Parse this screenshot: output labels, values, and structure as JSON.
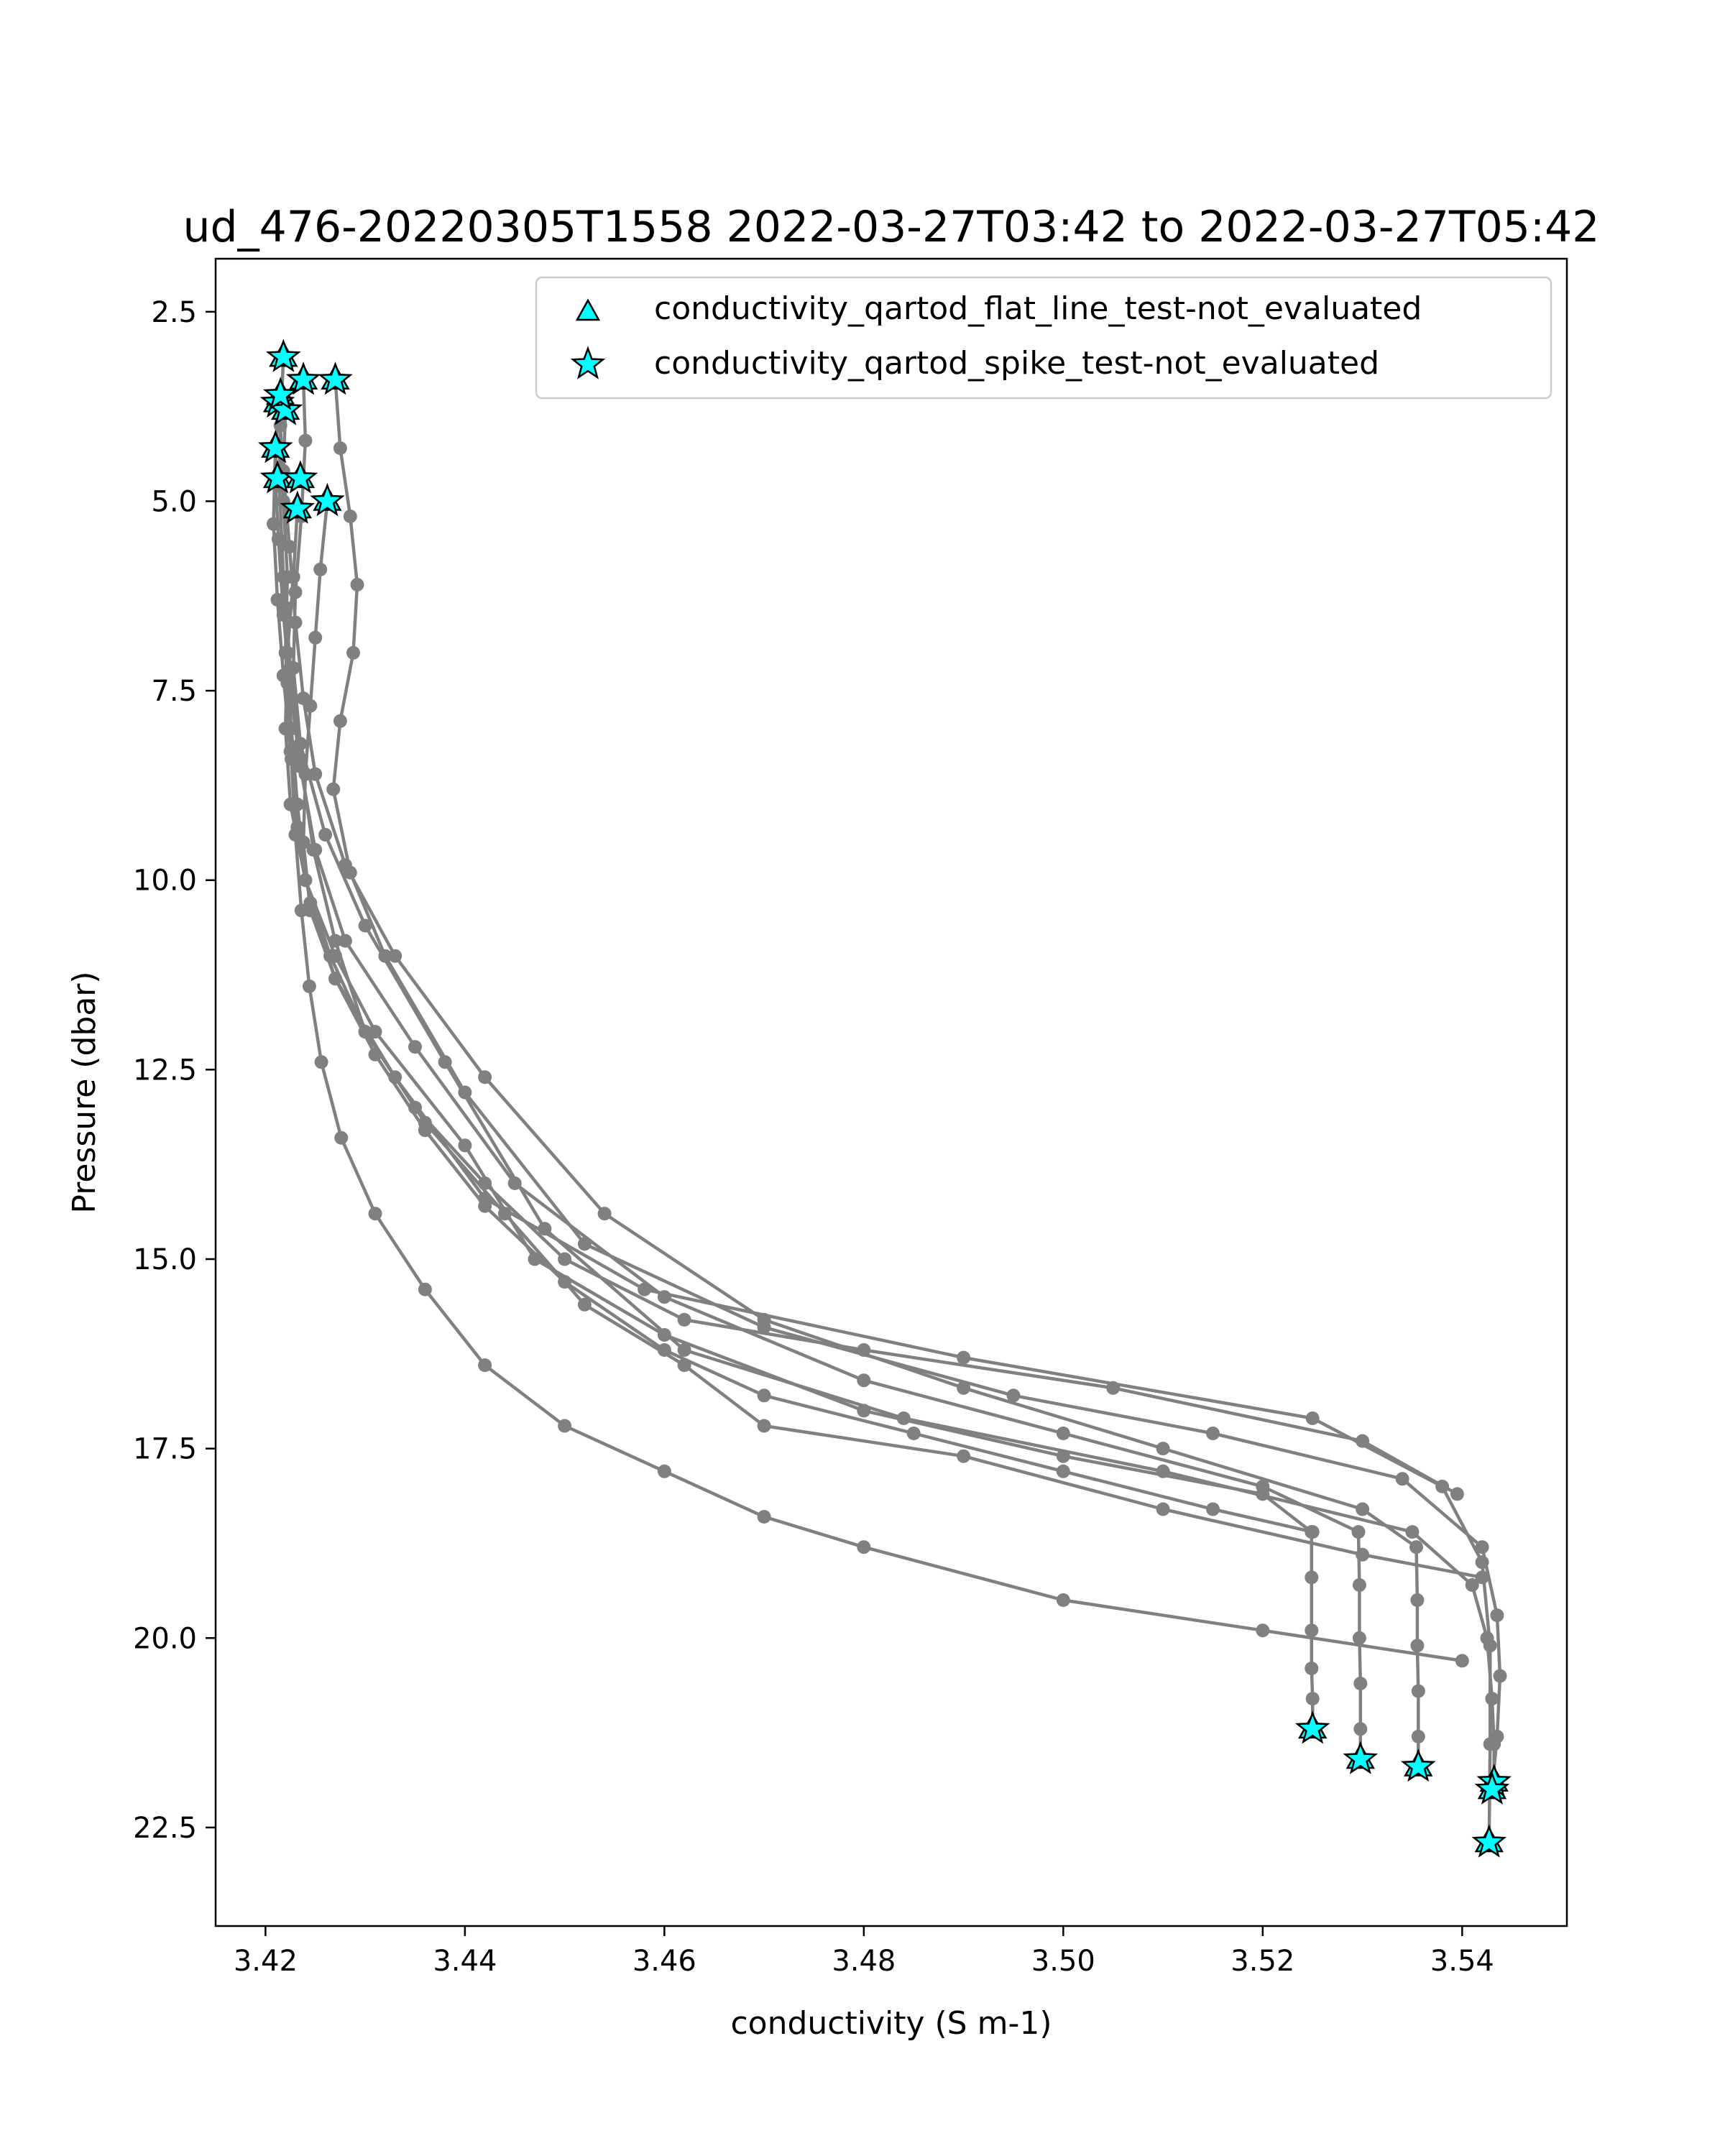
{
  "chart_data": {
    "type": "line",
    "title": "ud_476-20220305T1558 2022-03-27T03:42 to 2022-03-27T05:42",
    "xlabel": "conductivity (S m-1)",
    "ylabel": "Pressure (dbar)",
    "xlim": [
      3.415,
      3.5505
    ],
    "ylim": [
      23.8,
      1.8
    ],
    "y_inverted": true,
    "grid": false,
    "xticks": [
      "3.42",
      "3.44",
      "3.46",
      "3.48",
      "3.50",
      "3.52",
      "3.54"
    ],
    "yticks": [
      "2.5",
      "5.0",
      "7.5",
      "10.0",
      "12.5",
      "15.0",
      "17.5",
      "20.0",
      "22.5"
    ],
    "line_color": "#808080",
    "marker_color": "#00ffff",
    "legend": {
      "position": "top-right",
      "entries": [
        {
          "label": "conductivity_qartod_flat_line_test-not_evaluated",
          "marker": "triangle"
        },
        {
          "label": "conductivity_qartod_spike_test-not_evaluated",
          "marker": "star"
        }
      ]
    },
    "series": [
      {
        "x": [
          3.4218,
          3.4215,
          3.4218,
          3.4222,
          3.422,
          3.4226,
          3.4232,
          3.424,
          3.427,
          3.431,
          3.44,
          3.447,
          3.46,
          3.48,
          3.5,
          3.52,
          3.5249,
          3.5249,
          3.5249,
          3.5249,
          3.525,
          3.525
        ],
        "y": [
          3.1,
          4.0,
          5.0,
          6.0,
          7.0,
          8.0,
          9.0,
          10.0,
          11.0,
          12.0,
          13.5,
          15.0,
          16.0,
          17.0,
          17.6,
          18.1,
          18.6,
          19.2,
          19.9,
          20.4,
          20.8,
          21.2
        ]
      },
      {
        "x": [
          3.4212,
          3.421,
          3.4213,
          3.4218,
          3.4225,
          3.4235,
          3.425,
          3.428,
          3.435,
          3.445,
          3.46,
          3.48,
          3.5,
          3.52,
          3.5296,
          3.5297,
          3.5297,
          3.5298,
          3.5298,
          3.5298
        ],
        "y": [
          3.7,
          4.7,
          5.5,
          6.5,
          7.5,
          8.5,
          9.6,
          10.8,
          12.2,
          14.0,
          15.5,
          16.6,
          17.3,
          18.0,
          18.6,
          19.3,
          20.0,
          20.6,
          21.2,
          21.6
        ]
      },
      {
        "x": [
          3.422,
          3.4218,
          3.4224,
          3.423,
          3.4238,
          3.425,
          3.428,
          3.433,
          3.442,
          3.454,
          3.47,
          3.49,
          3.51,
          3.53,
          3.5354,
          3.5355,
          3.5355,
          3.5356,
          3.5356,
          3.5356
        ],
        "y": [
          3.8,
          4.6,
          5.6,
          6.6,
          7.6,
          8.6,
          9.8,
          11.0,
          12.6,
          14.4,
          15.8,
          16.7,
          17.5,
          18.3,
          18.8,
          19.5,
          20.1,
          20.7,
          21.3,
          21.7
        ]
      },
      {
        "x": [
          3.4238,
          3.424,
          3.4236,
          3.423,
          3.4228,
          3.4235,
          3.426,
          3.43,
          3.438,
          3.448,
          3.462,
          3.484,
          3.51,
          3.535,
          3.541,
          3.5425,
          3.543,
          3.5432,
          3.5432
        ],
        "y": [
          3.4,
          4.2,
          5.2,
          6.2,
          7.2,
          8.2,
          9.4,
          10.6,
          12.4,
          14.6,
          16.2,
          17.1,
          17.8,
          18.6,
          19.3,
          20.0,
          20.8,
          21.4,
          21.9
        ]
      },
      {
        "x": [
          3.427,
          3.4275,
          3.4285,
          3.4292,
          3.4288,
          3.4275,
          3.4268,
          3.4285,
          3.432,
          3.44,
          3.452,
          3.47,
          3.495,
          3.515,
          3.534,
          3.542,
          3.5435,
          3.5438,
          3.5435,
          3.543
        ],
        "y": [
          3.4,
          4.3,
          5.2,
          6.1,
          7.0,
          7.9,
          8.8,
          9.9,
          11.0,
          12.8,
          14.8,
          15.9,
          16.8,
          17.3,
          17.9,
          18.8,
          19.7,
          20.5,
          21.3,
          22.0
        ]
      },
      {
        "x": [
          3.4262,
          3.4255,
          3.425,
          3.4245,
          3.424,
          3.4238,
          3.4245,
          3.427,
          3.433,
          3.442,
          3.458,
          3.49,
          3.525,
          3.538,
          3.542,
          3.5428,
          3.5428,
          3.5427
        ],
        "y": [
          5.0,
          5.9,
          6.8,
          7.7,
          8.6,
          9.5,
          10.4,
          11.3,
          12.6,
          14.2,
          15.4,
          16.3,
          17.1,
          18.0,
          19.0,
          20.1,
          21.4,
          22.7
        ]
      },
      {
        "x": [
          3.421,
          3.4208,
          3.4212,
          3.4218,
          3.4225,
          3.4232,
          3.4245,
          3.427,
          3.431,
          3.436,
          3.442,
          3.45,
          3.46,
          3.47,
          3.485,
          3.5,
          3.515,
          3.525
        ],
        "y": [
          4.3,
          5.3,
          6.3,
          7.3,
          8.3,
          9.3,
          10.3,
          11.3,
          12.3,
          13.3,
          14.3,
          15.3,
          16.2,
          16.8,
          17.3,
          17.8,
          18.3,
          18.6
        ]
      },
      {
        "x": [
          3.4232,
          3.4228,
          3.4222,
          3.422,
          3.4225,
          3.424,
          3.4265,
          3.43,
          3.435,
          3.442,
          3.45,
          3.462,
          3.48,
          3.505,
          3.53,
          3.5395
        ],
        "y": [
          5.1,
          6.0,
          7.0,
          8.0,
          9.0,
          10.0,
          11.0,
          12.0,
          13.0,
          14.0,
          15.0,
          15.8,
          16.2,
          16.7,
          17.4,
          18.1
        ]
      },
      {
        "x": [
          3.4215,
          3.4214,
          3.4218,
          3.4225,
          3.4235,
          3.4248,
          3.427,
          3.43,
          3.436,
          3.444,
          3.452,
          3.462,
          3.47,
          3.49,
          3.51,
          3.53,
          3.542
        ],
        "y": [
          3.6,
          4.8,
          6.0,
          7.2,
          8.4,
          9.6,
          10.8,
          12.0,
          13.2,
          14.4,
          15.6,
          16.4,
          17.2,
          17.6,
          18.3,
          18.9,
          19.2
        ]
      },
      {
        "x": [
          3.422,
          3.4222,
          3.4226,
          3.423,
          3.4236,
          3.4244,
          3.4256,
          3.4276,
          3.431,
          3.436,
          3.442,
          3.45,
          3.46,
          3.47,
          3.48,
          3.5,
          3.52,
          3.54
        ],
        "y": [
          6.4,
          7.4,
          8.4,
          9.4,
          10.4,
          11.4,
          12.4,
          13.4,
          14.4,
          15.4,
          16.4,
          17.2,
          17.8,
          18.4,
          18.8,
          19.5,
          19.9,
          20.3
        ]
      }
    ],
    "triangle_points": [
      {
        "x": 3.4218,
        "y": 3.1
      },
      {
        "x": 3.4212,
        "y": 3.7
      },
      {
        "x": 3.422,
        "y": 3.8
      },
      {
        "x": 3.4238,
        "y": 3.4
      },
      {
        "x": 3.427,
        "y": 3.4
      },
      {
        "x": 3.421,
        "y": 4.3
      },
      {
        "x": 3.4215,
        "y": 3.6
      },
      {
        "x": 3.4262,
        "y": 5.0
      },
      {
        "x": 3.4232,
        "y": 5.1
      },
      {
        "x": 3.4212,
        "y": 4.7
      },
      {
        "x": 3.4235,
        "y": 4.7
      },
      {
        "x": 3.525,
        "y": 21.2
      },
      {
        "x": 3.5298,
        "y": 21.6
      },
      {
        "x": 3.5356,
        "y": 21.7
      },
      {
        "x": 3.5432,
        "y": 21.9
      },
      {
        "x": 3.543,
        "y": 22.0
      },
      {
        "x": 3.5427,
        "y": 22.7
      }
    ],
    "star_points": [
      {
        "x": 3.4218,
        "y": 3.1
      },
      {
        "x": 3.4212,
        "y": 3.7
      },
      {
        "x": 3.422,
        "y": 3.8
      },
      {
        "x": 3.4238,
        "y": 3.4
      },
      {
        "x": 3.427,
        "y": 3.4
      },
      {
        "x": 3.421,
        "y": 4.3
      },
      {
        "x": 3.4215,
        "y": 3.6
      },
      {
        "x": 3.4262,
        "y": 5.0
      },
      {
        "x": 3.4232,
        "y": 5.1
      },
      {
        "x": 3.4212,
        "y": 4.7
      },
      {
        "x": 3.4235,
        "y": 4.7
      },
      {
        "x": 3.525,
        "y": 21.2
      },
      {
        "x": 3.5298,
        "y": 21.6
      },
      {
        "x": 3.5356,
        "y": 21.7
      },
      {
        "x": 3.5432,
        "y": 21.9
      },
      {
        "x": 3.543,
        "y": 22.0
      },
      {
        "x": 3.5427,
        "y": 22.7
      }
    ]
  }
}
